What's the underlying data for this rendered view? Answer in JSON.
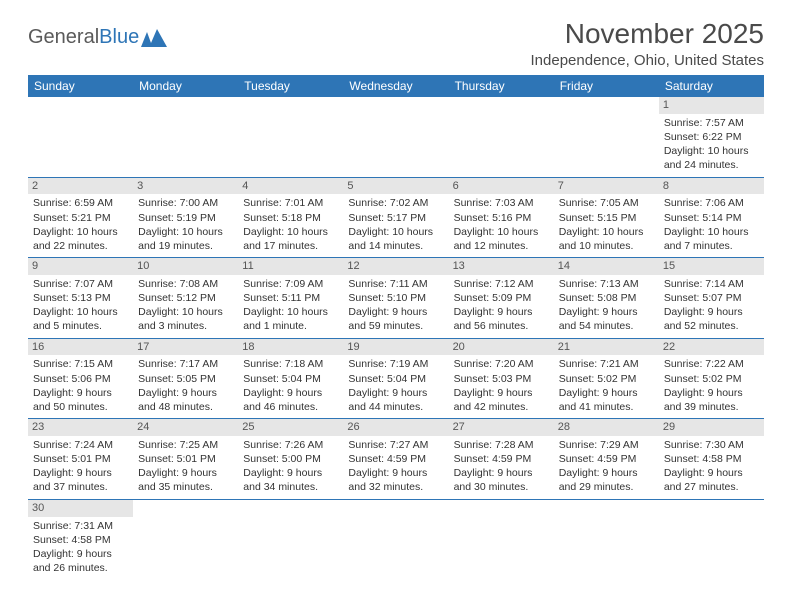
{
  "brand": {
    "part1": "General",
    "part2": "Blue"
  },
  "title": "November 2025",
  "location": "Independence, Ohio, United States",
  "colors": {
    "header_bg": "#2e75b6",
    "header_text": "#ffffff",
    "daynum_bg": "#e6e6e6",
    "border": "#2e75b6",
    "text": "#333333",
    "background": "#ffffff"
  },
  "typography": {
    "month_title_fontsize": 28,
    "location_fontsize": 15,
    "header_fontsize": 12,
    "cell_fontsize": 10.5
  },
  "calendar": {
    "day_headers": [
      "Sunday",
      "Monday",
      "Tuesday",
      "Wednesday",
      "Thursday",
      "Friday",
      "Saturday"
    ],
    "weeks": [
      [
        {
          "empty": true
        },
        {
          "empty": true
        },
        {
          "empty": true
        },
        {
          "empty": true
        },
        {
          "empty": true
        },
        {
          "empty": true
        },
        {
          "day": "1",
          "sunrise": "Sunrise: 7:57 AM",
          "sunset": "Sunset: 6:22 PM",
          "daylight": "Daylight: 10 hours and 24 minutes."
        }
      ],
      [
        {
          "day": "2",
          "sunrise": "Sunrise: 6:59 AM",
          "sunset": "Sunset: 5:21 PM",
          "daylight": "Daylight: 10 hours and 22 minutes."
        },
        {
          "day": "3",
          "sunrise": "Sunrise: 7:00 AM",
          "sunset": "Sunset: 5:19 PM",
          "daylight": "Daylight: 10 hours and 19 minutes."
        },
        {
          "day": "4",
          "sunrise": "Sunrise: 7:01 AM",
          "sunset": "Sunset: 5:18 PM",
          "daylight": "Daylight: 10 hours and 17 minutes."
        },
        {
          "day": "5",
          "sunrise": "Sunrise: 7:02 AM",
          "sunset": "Sunset: 5:17 PM",
          "daylight": "Daylight: 10 hours and 14 minutes."
        },
        {
          "day": "6",
          "sunrise": "Sunrise: 7:03 AM",
          "sunset": "Sunset: 5:16 PM",
          "daylight": "Daylight: 10 hours and 12 minutes."
        },
        {
          "day": "7",
          "sunrise": "Sunrise: 7:05 AM",
          "sunset": "Sunset: 5:15 PM",
          "daylight": "Daylight: 10 hours and 10 minutes."
        },
        {
          "day": "8",
          "sunrise": "Sunrise: 7:06 AM",
          "sunset": "Sunset: 5:14 PM",
          "daylight": "Daylight: 10 hours and 7 minutes."
        }
      ],
      [
        {
          "day": "9",
          "sunrise": "Sunrise: 7:07 AM",
          "sunset": "Sunset: 5:13 PM",
          "daylight": "Daylight: 10 hours and 5 minutes."
        },
        {
          "day": "10",
          "sunrise": "Sunrise: 7:08 AM",
          "sunset": "Sunset: 5:12 PM",
          "daylight": "Daylight: 10 hours and 3 minutes."
        },
        {
          "day": "11",
          "sunrise": "Sunrise: 7:09 AM",
          "sunset": "Sunset: 5:11 PM",
          "daylight": "Daylight: 10 hours and 1 minute."
        },
        {
          "day": "12",
          "sunrise": "Sunrise: 7:11 AM",
          "sunset": "Sunset: 5:10 PM",
          "daylight": "Daylight: 9 hours and 59 minutes."
        },
        {
          "day": "13",
          "sunrise": "Sunrise: 7:12 AM",
          "sunset": "Sunset: 5:09 PM",
          "daylight": "Daylight: 9 hours and 56 minutes."
        },
        {
          "day": "14",
          "sunrise": "Sunrise: 7:13 AM",
          "sunset": "Sunset: 5:08 PM",
          "daylight": "Daylight: 9 hours and 54 minutes."
        },
        {
          "day": "15",
          "sunrise": "Sunrise: 7:14 AM",
          "sunset": "Sunset: 5:07 PM",
          "daylight": "Daylight: 9 hours and 52 minutes."
        }
      ],
      [
        {
          "day": "16",
          "sunrise": "Sunrise: 7:15 AM",
          "sunset": "Sunset: 5:06 PM",
          "daylight": "Daylight: 9 hours and 50 minutes."
        },
        {
          "day": "17",
          "sunrise": "Sunrise: 7:17 AM",
          "sunset": "Sunset: 5:05 PM",
          "daylight": "Daylight: 9 hours and 48 minutes."
        },
        {
          "day": "18",
          "sunrise": "Sunrise: 7:18 AM",
          "sunset": "Sunset: 5:04 PM",
          "daylight": "Daylight: 9 hours and 46 minutes."
        },
        {
          "day": "19",
          "sunrise": "Sunrise: 7:19 AM",
          "sunset": "Sunset: 5:04 PM",
          "daylight": "Daylight: 9 hours and 44 minutes."
        },
        {
          "day": "20",
          "sunrise": "Sunrise: 7:20 AM",
          "sunset": "Sunset: 5:03 PM",
          "daylight": "Daylight: 9 hours and 42 minutes."
        },
        {
          "day": "21",
          "sunrise": "Sunrise: 7:21 AM",
          "sunset": "Sunset: 5:02 PM",
          "daylight": "Daylight: 9 hours and 41 minutes."
        },
        {
          "day": "22",
          "sunrise": "Sunrise: 7:22 AM",
          "sunset": "Sunset: 5:02 PM",
          "daylight": "Daylight: 9 hours and 39 minutes."
        }
      ],
      [
        {
          "day": "23",
          "sunrise": "Sunrise: 7:24 AM",
          "sunset": "Sunset: 5:01 PM",
          "daylight": "Daylight: 9 hours and 37 minutes."
        },
        {
          "day": "24",
          "sunrise": "Sunrise: 7:25 AM",
          "sunset": "Sunset: 5:01 PM",
          "daylight": "Daylight: 9 hours and 35 minutes."
        },
        {
          "day": "25",
          "sunrise": "Sunrise: 7:26 AM",
          "sunset": "Sunset: 5:00 PM",
          "daylight": "Daylight: 9 hours and 34 minutes."
        },
        {
          "day": "26",
          "sunrise": "Sunrise: 7:27 AM",
          "sunset": "Sunset: 4:59 PM",
          "daylight": "Daylight: 9 hours and 32 minutes."
        },
        {
          "day": "27",
          "sunrise": "Sunrise: 7:28 AM",
          "sunset": "Sunset: 4:59 PM",
          "daylight": "Daylight: 9 hours and 30 minutes."
        },
        {
          "day": "28",
          "sunrise": "Sunrise: 7:29 AM",
          "sunset": "Sunset: 4:59 PM",
          "daylight": "Daylight: 9 hours and 29 minutes."
        },
        {
          "day": "29",
          "sunrise": "Sunrise: 7:30 AM",
          "sunset": "Sunset: 4:58 PM",
          "daylight": "Daylight: 9 hours and 27 minutes."
        }
      ],
      [
        {
          "day": "30",
          "sunrise": "Sunrise: 7:31 AM",
          "sunset": "Sunset: 4:58 PM",
          "daylight": "Daylight: 9 hours and 26 minutes."
        },
        {
          "empty": true
        },
        {
          "empty": true
        },
        {
          "empty": true
        },
        {
          "empty": true
        },
        {
          "empty": true
        },
        {
          "empty": true
        }
      ]
    ]
  }
}
